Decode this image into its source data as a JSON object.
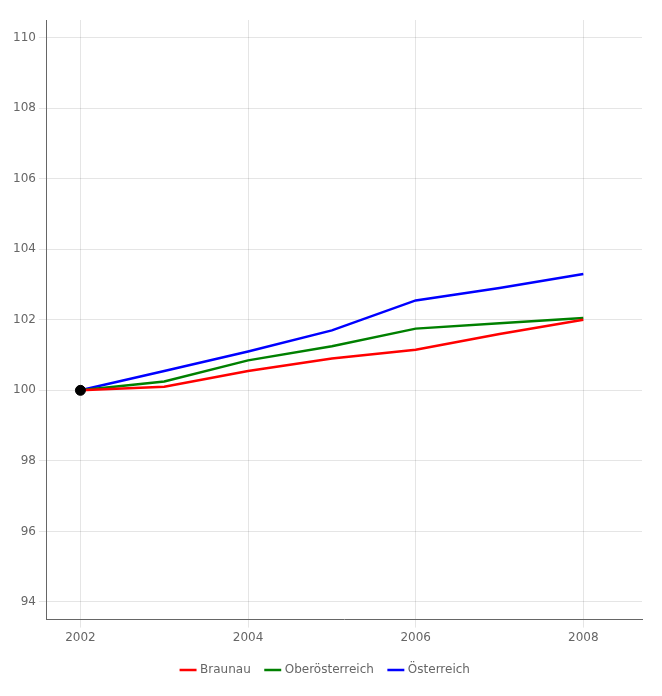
{
  "chart_data": {
    "type": "line",
    "x": [
      2002,
      2003,
      2004,
      2005,
      2006,
      2007,
      2008
    ],
    "series": [
      {
        "name": "Braunau",
        "color": "#ff0000",
        "values": [
          100.0,
          100.1,
          100.55,
          100.9,
          101.15,
          101.6,
          102.0
        ]
      },
      {
        "name": "Oberösterreich",
        "color": "#008000",
        "values": [
          100.0,
          100.25,
          100.85,
          101.25,
          101.75,
          101.9,
          102.05
        ]
      },
      {
        "name": "Österreich",
        "color": "#0000ff",
        "values": [
          100.0,
          100.55,
          101.1,
          101.7,
          102.55,
          102.9,
          103.3
        ]
      }
    ],
    "highlight": {
      "x": 2002,
      "y": 100.0,
      "color": "#000000"
    },
    "xlim": [
      2001.6,
      2008.7
    ],
    "ylim": [
      93.5,
      110.5
    ],
    "xticks": [
      2002,
      2004,
      2006,
      2008
    ],
    "yticks": [
      94,
      96,
      98,
      100,
      102,
      104,
      106,
      108,
      110
    ],
    "grid": true,
    "legend": "bottom"
  }
}
